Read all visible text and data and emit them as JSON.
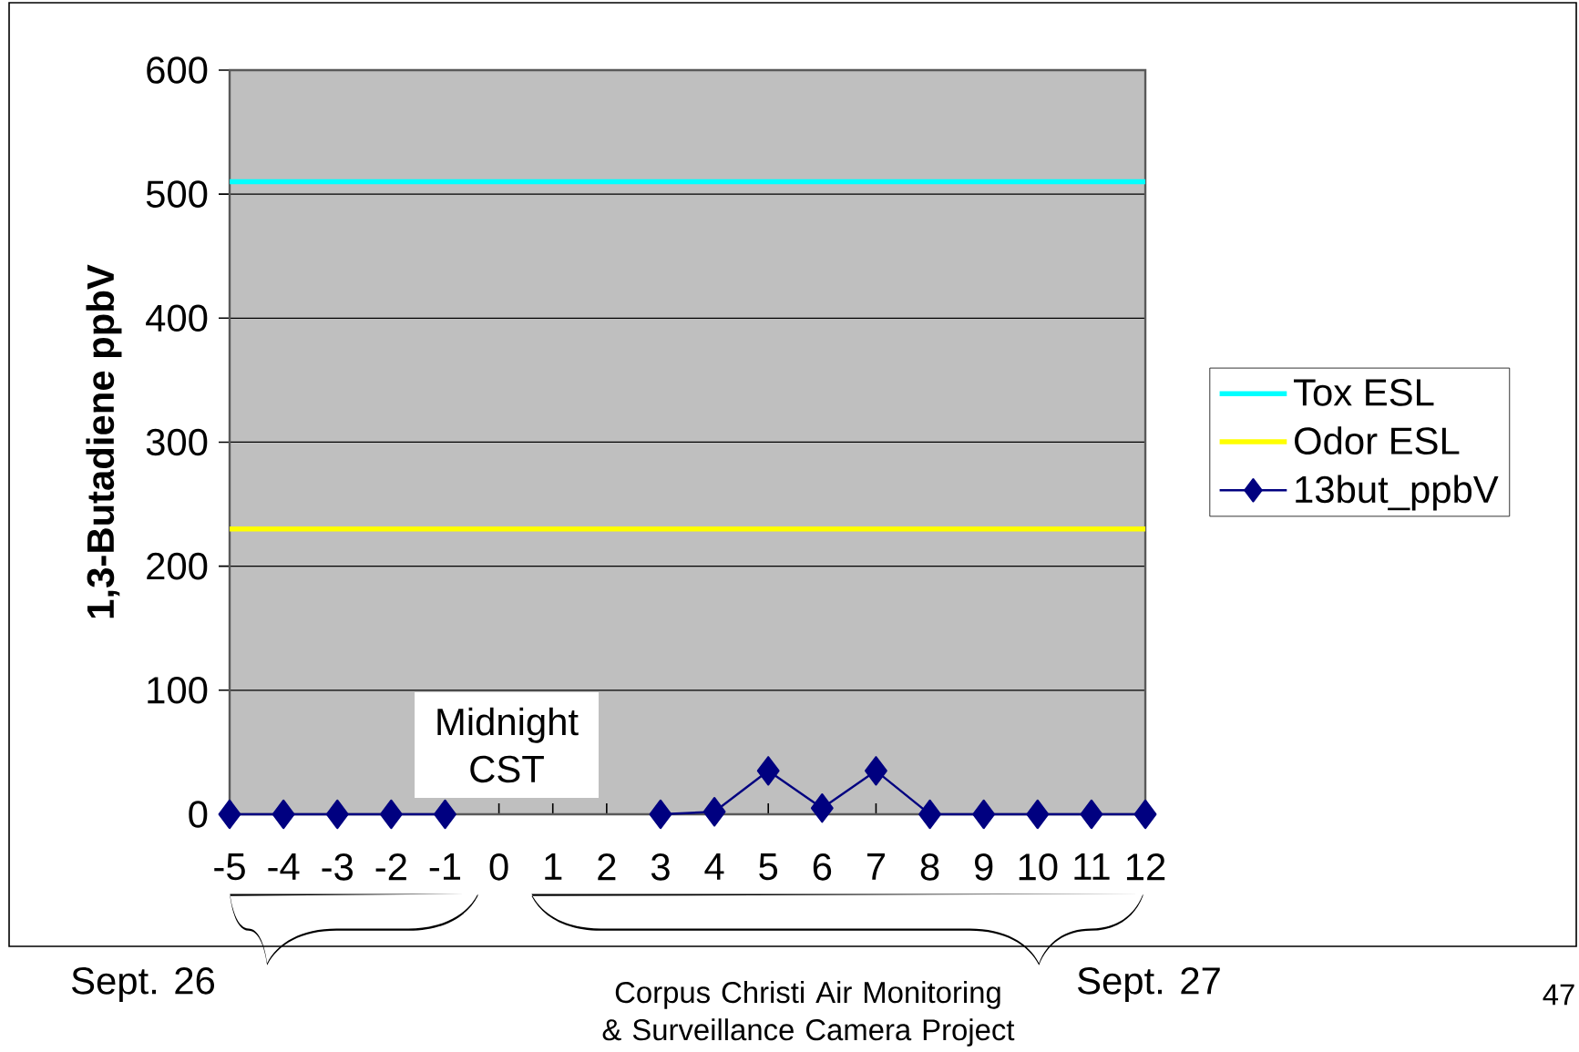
{
  "chart_data": {
    "type": "line",
    "ylabel": "1,3-Butadiene ppbV",
    "categories": [
      "-5",
      "-4",
      "-3",
      "-2",
      "-1",
      "0",
      "1",
      "2",
      "3",
      "4",
      "5",
      "6",
      "7",
      "8",
      "9",
      "10",
      "11",
      "12"
    ],
    "series": [
      {
        "name": "Tox ESL",
        "color": "#00ffff",
        "values": [
          510,
          510,
          510,
          510,
          510,
          510,
          510,
          510,
          510,
          510,
          510,
          510,
          510,
          510,
          510,
          510,
          510,
          510
        ]
      },
      {
        "name": "Odor ESL",
        "color": "#ffff00",
        "values": [
          230,
          230,
          230,
          230,
          230,
          230,
          230,
          230,
          230,
          230,
          230,
          230,
          230,
          230,
          230,
          230,
          230,
          230
        ]
      },
      {
        "name": "13but_ppbV",
        "color": "#000080",
        "marker": "diamond",
        "values": [
          0,
          0,
          0,
          0,
          0,
          null,
          null,
          null,
          0,
          2,
          35,
          5,
          35,
          0,
          0,
          0,
          0,
          0
        ]
      }
    ],
    "ylim": [
      0,
      600
    ],
    "yticks": [
      0,
      100,
      200,
      300,
      400,
      500,
      600
    ],
    "grid": "y",
    "legend": "right",
    "annotations": [
      "Midnight CST",
      "Sept. 26",
      "Sept. 27",
      "Corpus Christi Air Monitoring & Surveillance Camera Project",
      "47"
    ]
  }
}
